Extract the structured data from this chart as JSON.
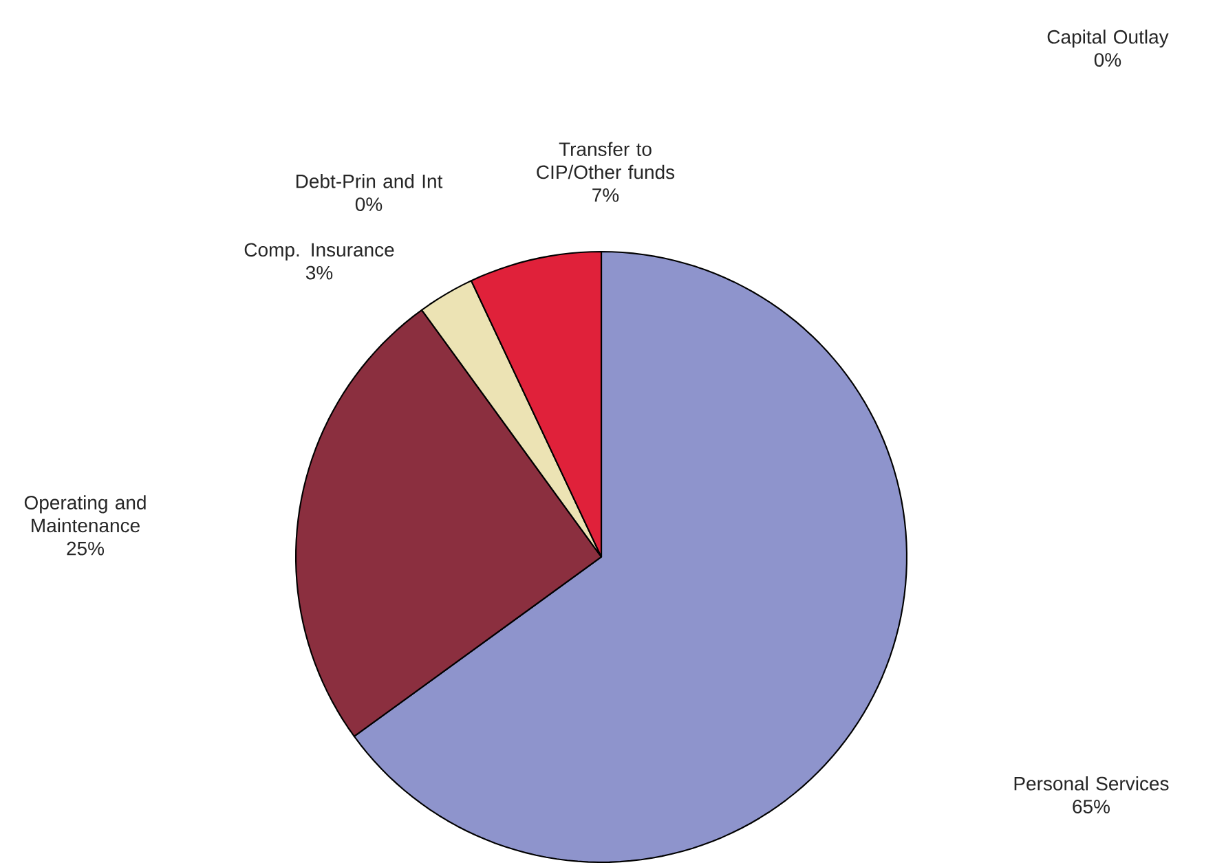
{
  "chart_data": {
    "type": "pie",
    "categories": [
      "Personal Services",
      "Capital Outlay",
      "Operating and Maintenance",
      "Comp. Insurance",
      "Debt-Prin and Int",
      "Transfer to CIP/Other funds"
    ],
    "values": [
      65,
      0,
      25,
      3,
      0,
      7
    ],
    "value_labels": [
      "65%",
      "0%",
      "25%",
      "3%",
      "0%",
      "7%"
    ],
    "colors": [
      "#8e94cc",
      "#e8e4bc",
      "#8b2f3f",
      "#ece3b4",
      "#5a1a2a",
      "#e0213a"
    ]
  }
}
